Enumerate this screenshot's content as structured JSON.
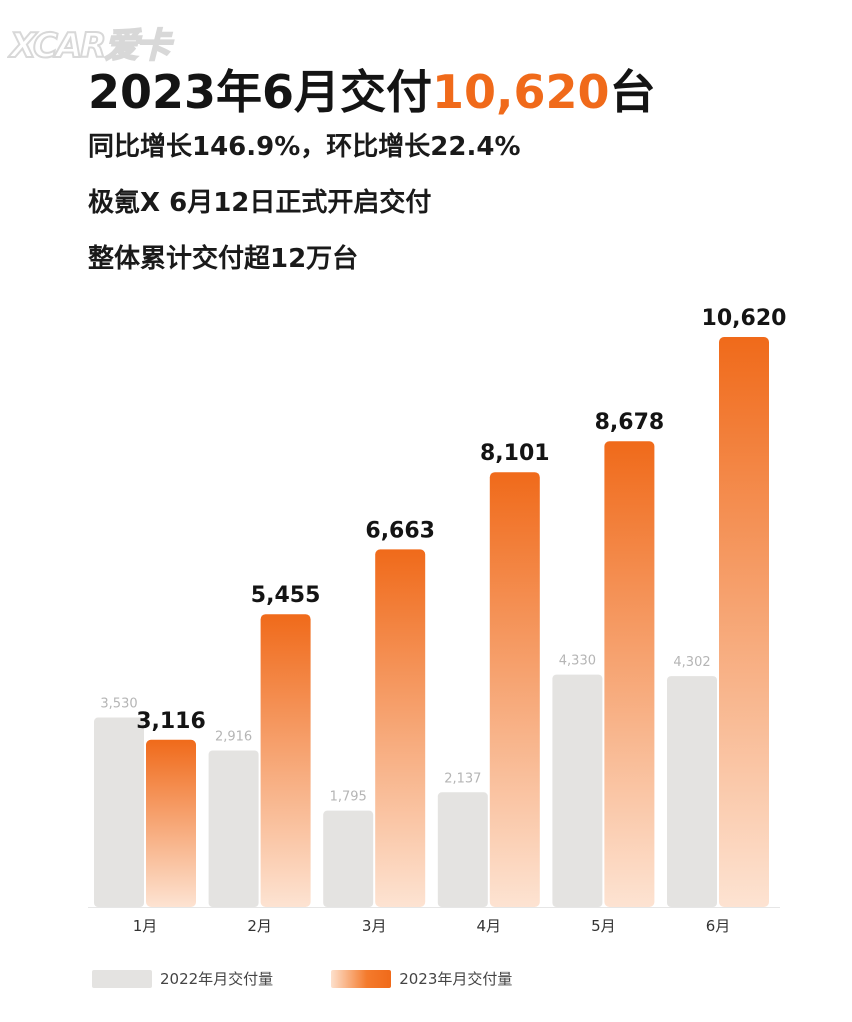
{
  "logo_text": "XCAR爱卡",
  "headline": {
    "prefix": "2023年6月交付",
    "highlight": "10,620",
    "suffix": "台"
  },
  "sublines": [
    "同比增长146.9%，环比增长22.4%",
    "极氪X 6月12日正式开启交付",
    "整体累计交付超12万台"
  ],
  "colors": {
    "accent": "#f06a1a",
    "series_2022": "#e4e3e1",
    "series_2023_top": "#f06a1a",
    "series_2023_bottom": "#fde3d2"
  },
  "chart_data": {
    "type": "bar",
    "categories": [
      "1月",
      "2月",
      "3月",
      "4月",
      "5月",
      "6月"
    ],
    "series": [
      {
        "name": "2022年月交付量",
        "values": [
          3530,
          2916,
          1795,
          2137,
          4330,
          4302
        ],
        "labels": [
          "3,530",
          "2,916",
          "1,795",
          "2,137",
          "4,330",
          "4,302"
        ]
      },
      {
        "name": "2023年月交付量",
        "values": [
          3116,
          5455,
          6663,
          8101,
          8678,
          10620
        ],
        "labels": [
          "3,116",
          "5,455",
          "6,663",
          "8,101",
          "8,678",
          "10,620"
        ]
      }
    ],
    "title": "",
    "xlabel": "",
    "ylabel": "",
    "ylim": [
      0,
      10620
    ],
    "grid": false,
    "legend": "bottom-left"
  }
}
